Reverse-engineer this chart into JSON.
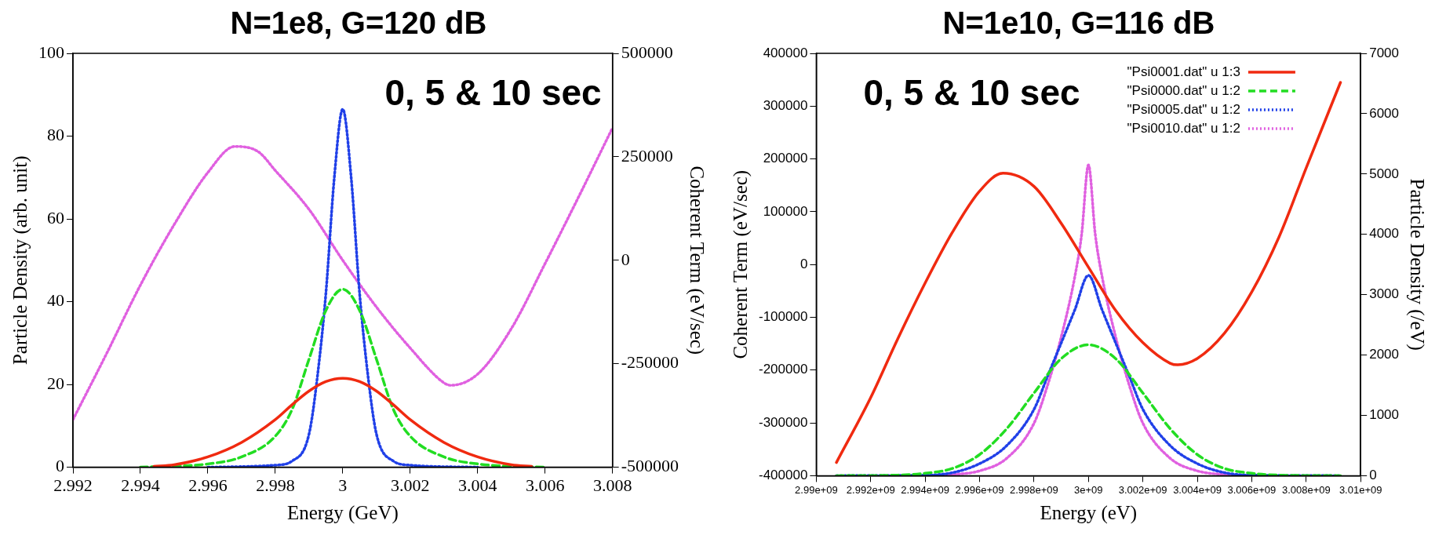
{
  "chart_data": [
    {
      "type": "line",
      "title": "N=1e8, G=120 dB",
      "xlabel": "Energy (GeV)",
      "ylabel": "Particle Density (arb. unit)",
      "y2label": "Coherent Term (eV/sec)",
      "annotations": [
        "0, 5 & 10 sec"
      ],
      "xlim": [
        2.992,
        3.008
      ],
      "xticks": [
        2.992,
        2.994,
        2.996,
        2.998,
        3,
        3.002,
        3.004,
        3.006,
        3.008
      ],
      "ylim": [
        0,
        100
      ],
      "yticks": [
        0,
        20,
        40,
        60,
        80,
        100
      ],
      "y2lim": [
        -500000,
        500000
      ],
      "y2ticks": [
        -500000,
        -250000,
        0,
        250000,
        500000
      ],
      "series": [
        {
          "color": "#f02a10",
          "line_style": "solid",
          "x": [
            2.9944,
            2.995,
            2.996,
            2.997,
            2.998,
            2.9985,
            2.999,
            2.9995,
            3.0,
            3.0005,
            3.001,
            3.0015,
            3.002,
            3.003,
            3.004,
            3.005,
            3.0056
          ],
          "values": [
            0.2,
            0.6,
            2.5,
            6,
            11.5,
            15.1,
            18.4,
            20.7,
            21.5,
            20.7,
            18.4,
            15.1,
            11.5,
            6,
            2.5,
            0.6,
            0.2
          ]
        },
        {
          "color": "#22dd22",
          "line_style": "dashed",
          "x": [
            2.994,
            2.996,
            2.997,
            2.998,
            2.9985,
            2.999,
            2.9995,
            3.0,
            3.0005,
            3.001,
            3.0015,
            3.002,
            3.003,
            3.004,
            3.006
          ],
          "values": [
            0,
            0.8,
            2.5,
            7.5,
            14,
            26.1,
            37.9,
            43,
            37.9,
            26.1,
            14,
            7.5,
            2.5,
            0.8,
            0
          ]
        },
        {
          "color": "#2040e8",
          "line_style": "dotted",
          "x": [
            2.996,
            2.998,
            2.9985,
            2.999,
            2.99925,
            2.9995,
            2.99975,
            3.0,
            3.00025,
            3.0005,
            3.00075,
            3.001,
            3.0015,
            3.002,
            3.004
          ],
          "values": [
            0,
            0.5,
            1.5,
            8,
            22,
            42,
            70,
            86.5,
            70,
            42,
            22,
            8,
            1.5,
            0.5,
            0
          ]
        },
        {
          "color": "#e060e0",
          "line_style": "dotted",
          "axis": "y2",
          "x": [
            2.992,
            2.993,
            2.994,
            2.995,
            2.996,
            2.9968,
            2.9975,
            2.998,
            2.999,
            3.0,
            3.001,
            3.002,
            3.003,
            3.0032,
            3.004,
            3.005,
            3.006,
            3.007,
            3.008
          ],
          "values": [
            -385000,
            -225000,
            -60000,
            86000,
            212000,
            275000,
            262000,
            217000,
            123000,
            0,
            -113000,
            -212000,
            -296000,
            -302000,
            -275000,
            -165000,
            -8000,
            154000,
            320000
          ]
        }
      ]
    },
    {
      "type": "line",
      "title": "N=1e10, G=116 dB",
      "xlabel": "Energy (eV)",
      "ylabel": "Coherent Term (eV/sec)",
      "y2label": "Particle Density (/eV)",
      "annotations": [
        "0, 5 & 10 sec"
      ],
      "legend": "top right",
      "xlim": [
        2990000000,
        3010000000
      ],
      "xticks": [
        {
          "value": 2990000000,
          "label": "2.99e+09"
        },
        {
          "value": 2992000000,
          "label": "2.992e+09"
        },
        {
          "value": 2994000000,
          "label": "2.994e+09"
        },
        {
          "value": 2996000000,
          "label": "2.996e+09"
        },
        {
          "value": 2998000000,
          "label": "2.998e+09"
        },
        {
          "value": 3000000000,
          "label": "3e+09"
        },
        {
          "value": 3002000000,
          "label": "3.002e+09"
        },
        {
          "value": 3004000000,
          "label": "3.004e+09"
        },
        {
          "value": 3006000000,
          "label": "3.006e+09"
        },
        {
          "value": 3008000000,
          "label": "3.008e+09"
        },
        {
          "value": 3010000000,
          "label": "3.01e+09"
        }
      ],
      "ylim": [
        -400000,
        400000
      ],
      "yticks": [
        -400000,
        -300000,
        -200000,
        -100000,
        0,
        100000,
        200000,
        300000,
        400000
      ],
      "y2lim": [
        0,
        7000
      ],
      "y2ticks": [
        0,
        1000,
        2000,
        3000,
        4000,
        5000,
        6000,
        7000
      ],
      "series": [
        {
          "name": "\"Psi0001.dat\" u 1:3",
          "color": "#f02a10",
          "line_style": "solid",
          "x": [
            2990740000,
            2992000000,
            2993000000,
            2994000000,
            2995000000,
            2996000000,
            2996860000,
            2998000000,
            2999000000,
            3000000000,
            3001000000,
            3002000000,
            3003000000,
            3003280000,
            3004000000,
            3005000000,
            3006000000,
            3007000000,
            3008000000,
            3009260000
          ],
          "values": [
            -375000,
            -252000,
            -140000,
            -35000,
            61000,
            139000,
            173000,
            148000,
            78000,
            -5000,
            -87000,
            -148000,
            -187000,
            -190000,
            -178000,
            -130000,
            -52000,
            52000,
            183000,
            345000
          ]
        },
        {
          "name": "\"Psi0000.dat\" u 1:2",
          "color": "#22dd22",
          "line_style": "dashed",
          "axis": "y2",
          "x": [
            2990740000,
            2993000000,
            2994000000,
            2995000000,
            2996000000,
            2997000000,
            2998000000,
            2999000000,
            3000000000,
            3001000000,
            3002000000,
            3003000000,
            3004000000,
            3005000000,
            3006000000,
            3007000000,
            3009260000
          ],
          "values": [
            0,
            10,
            40,
            120,
            350,
            780,
            1370,
            1940,
            2170,
            1940,
            1370,
            780,
            350,
            120,
            40,
            10,
            0
          ]
        },
        {
          "name": "\"Psi0005.dat\" u 1:2",
          "color": "#2040e8",
          "line_style": "dotted",
          "axis": "y2",
          "x": [
            2990740000,
            2994000000,
            2995000000,
            2996000000,
            2997000000,
            2998000000,
            2998500000,
            2999000000,
            2999500000,
            3000000000,
            3000500000,
            3001000000,
            3001500000,
            3002000000,
            3003000000,
            3004000000,
            3005000000,
            3006000000,
            3009260000
          ],
          "values": [
            0,
            10,
            50,
            200,
            500,
            1100,
            1650,
            2200,
            2750,
            3320,
            2750,
            2200,
            1650,
            1100,
            500,
            200,
            50,
            10,
            0
          ]
        },
        {
          "name": "\"Psi0010.dat\" u 1:2",
          "color": "#e060e0",
          "line_style": "dotted",
          "axis": "y2",
          "x": [
            2990740000,
            2994000000,
            2995000000,
            2996000000,
            2997000000,
            2998000000,
            2998500000,
            2999000000,
            2999500000,
            2999750000,
            3000000000,
            3000250000,
            3000500000,
            3001000000,
            3001500000,
            3002000000,
            3003000000,
            3004000000,
            3005000000,
            3006000000,
            3009260000
          ],
          "values": [
            0,
            0,
            20,
            80,
            290,
            870,
            1500,
            2300,
            3300,
            4000,
            5150,
            4000,
            3300,
            2300,
            1500,
            870,
            290,
            80,
            20,
            0,
            0
          ]
        }
      ]
    }
  ]
}
